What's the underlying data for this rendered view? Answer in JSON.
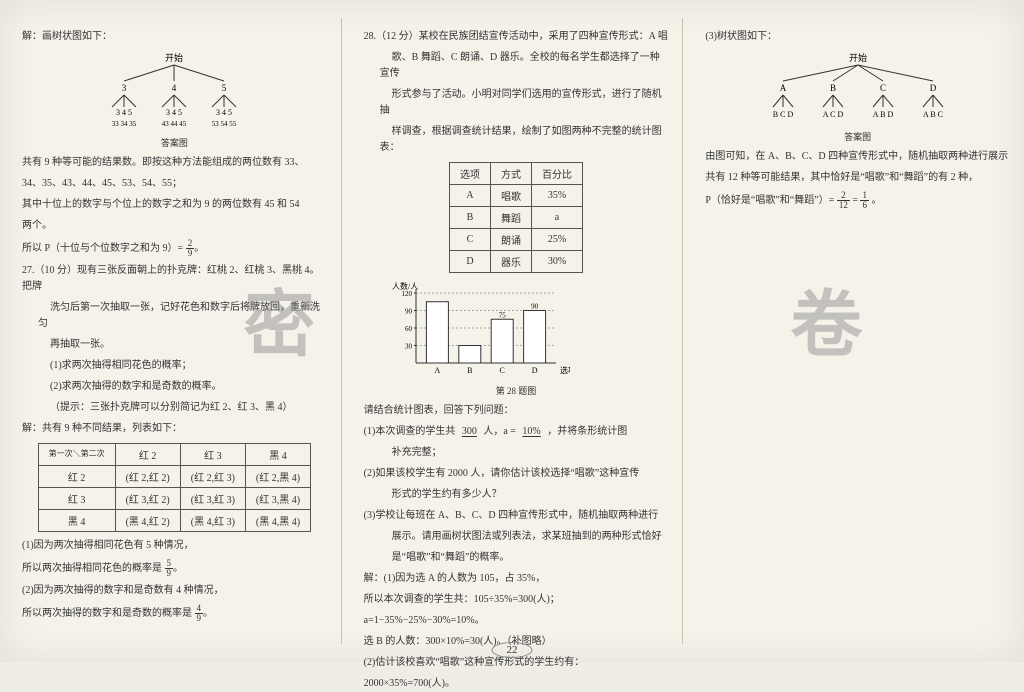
{
  "col1": {
    "p1": "解：画树状图如下：",
    "tree_caption": "答案图",
    "root": "开始",
    "row1": [
      "3",
      "4",
      "5"
    ],
    "row2": [
      "3 4 5",
      "3 4 5",
      "3 4 5"
    ],
    "row3": [
      "33 34 35",
      "43 44 45",
      "53 54 55"
    ],
    "p2": "共有 9 种等可能的结果数。即按这种方法能组成的两位数有 33、",
    "p3": "34、35、43、44、45、53、54、55；",
    "p4": "其中十位上的数字与个位上的数字之和为 9 的两位数有 45 和 54",
    "p5": "两个。",
    "p6_a": "所以 P（十位与个位数字之和为 9）= ",
    "p6_frac_n": "2",
    "p6_frac_d": "9",
    "q27": "27.（10 分）现有三张反面朝上的扑克牌：红桃 2、红桃 3、黑桃 4。把牌",
    "q27b": "洗匀后第一次抽取一张，记好花色和数字后将牌放回，重新洗匀",
    "q27c": "再抽取一张。",
    "q27d": "(1)求两次抽得相同花色的概率；",
    "q27e": "(2)求两次抽得的数字和是奇数的概率。",
    "q27f": "（提示：三张扑克牌可以分别简记为红 2、红 3、黑 4）",
    "q27g": "解：共有 9 种不同结果，列表如下：",
    "tbl": {
      "cols": [
        "",
        "红 2",
        "红 3",
        "黑 4"
      ],
      "corner": "第一次＼第二次",
      "rows": [
        [
          "红 2",
          "(红 2,红 2)",
          "(红 2,红 3)",
          "(红 2,黑 4)"
        ],
        [
          "红 3",
          "(红 3,红 2)",
          "(红 3,红 3)",
          "(红 3,黑 4)"
        ],
        [
          "黑 4",
          "(黑 4,红 2)",
          "(黑 4,红 3)",
          "(黑 4,黑 4)"
        ]
      ]
    },
    "q27h": "(1)因为两次抽得相同花色有 5 种情况，",
    "q27i_a": "所以两次抽得相同花色的概率是 ",
    "q27i_frac_n": "5",
    "q27i_frac_d": "9",
    "q27j": "(2)因为两次抽得的数字和是奇数有 4 种情况，",
    "q27k_a": "所以两次抽得的数字和是奇数的概率是 ",
    "q27k_frac_n": "4",
    "q27k_frac_d": "9"
  },
  "col2": {
    "q28a": "28.（12 分）某校在民族团结宣传活动中，采用了四种宣传形式：A 唱",
    "q28b": "歌、B 舞蹈、C 朗诵、D 器乐。全校的每名学生都选择了一种宣传",
    "q28c": "形式参与了活动。小明对同学们选用的宣传形式，进行了随机抽",
    "q28d": "样调查，根据调查统计结果，绘制了如图两种不完整的统计图表：",
    "tbl": {
      "head": [
        "选项",
        "方式",
        "百分比"
      ],
      "rows": [
        [
          "A",
          "唱歌",
          "35%"
        ],
        [
          "B",
          "舞蹈",
          "a"
        ],
        [
          "C",
          "朗诵",
          "25%"
        ],
        [
          "D",
          "器乐",
          "30%"
        ]
      ]
    },
    "chart": {
      "ylabel": "人数/人",
      "ymax": 120,
      "yticks": [
        30,
        60,
        90,
        120
      ],
      "xlabels": [
        "A",
        "B",
        "C",
        "D"
      ],
      "xlab_right": "选项",
      "values": [
        105,
        30,
        75,
        90
      ],
      "bar_color": "#ffffff",
      "bar_border": "#333333",
      "labels_shown": {
        "C": "75",
        "D": "90",
        "cap120": "120"
      },
      "caption": "第 28 题图"
    },
    "p1": "请结合统计图表，回答下列问题：",
    "p2a": "(1)本次调查的学生共 ",
    "p2_fill1": "300",
    "p2b": " 人，a = ",
    "p2_fill2": "10%",
    "p2c": " ，并将条形统计图",
    "p2d": "补充完整；",
    "p3": "(2)如果该校学生有 2000 人，请你估计该校选择“唱歌”这种宣传",
    "p3b": "形式的学生约有多少人？",
    "p4": "(3)学校让每班在 A、B、C、D 四种宣传形式中，随机抽取两种进行",
    "p4b": "展示。请用画树状图法或列表法，求某班抽到的两种形式恰好",
    "p4c": "是“唱歌”和“舞蹈”的概率。",
    "p5": "解：(1)因为选 A 的人数为 105，占 35%，",
    "p6": "所以本次调查的学生共：105÷35%=300(人)；",
    "p7": "a=1−35%−25%−30%=10%。",
    "p8": "选 B 的人数：300×10%=30(人)。（补图略）",
    "p9": "(2)估计该校喜欢“唱歌”这种宣传形式的学生约有：",
    "p10": "2000×35%=700(人)。"
  },
  "col3": {
    "p1": "(3)树状图如下：",
    "root": "开始",
    "row1": [
      "A",
      "B",
      "C",
      "D"
    ],
    "row2": [
      "B C D",
      "A C D",
      "A B D",
      "A B C"
    ],
    "caption": "答案图",
    "p2": "由图可知，在 A、B、C、D 四种宣传形式中，随机抽取两种进行展示",
    "p3": "共有 12 种等可能结果，其中恰好是“唱歌”和“舞蹈”的有 2 种，",
    "p4a": "P（恰好是“唱歌”和“舞蹈”）= ",
    "p4_f1n": "2",
    "p4_f1d": "12",
    "p4b": " = ",
    "p4_f2n": "1",
    "p4_f2d": "6",
    "p4c": "。"
  },
  "watermarks": {
    "mi": "密",
    "juan": "卷"
  },
  "pagenum": "22",
  "style": {
    "bg": "#f5f2ea",
    "text": "#333333",
    "border": "#555555",
    "wm": "#888888"
  }
}
